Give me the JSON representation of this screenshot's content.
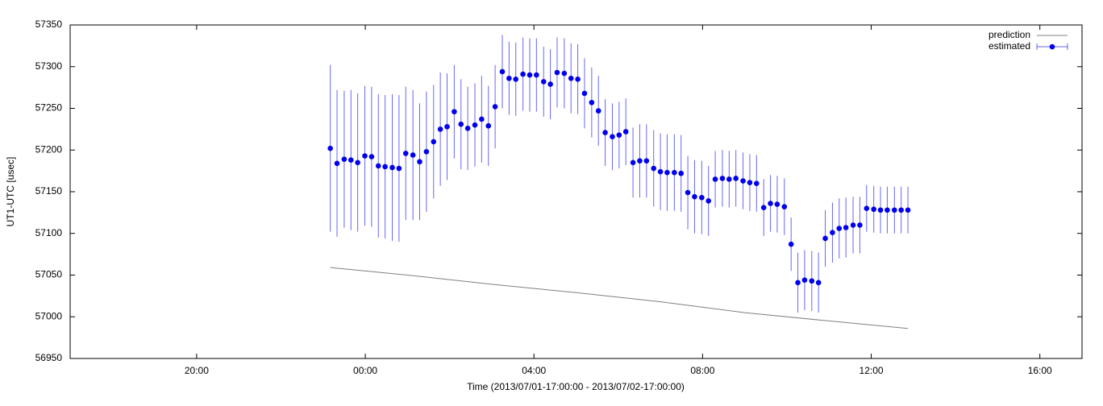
{
  "chart_data": {
    "type": "errorbar",
    "xlabel": "Time (2013/07/01-17:00:00 - 2013/07/02-17:00:00)",
    "ylabel": "UT1-UTC [usec]",
    "xlim": [
      0,
      24
    ],
    "xticks": [
      {
        "value": 3,
        "label": "20:00"
      },
      {
        "value": 7,
        "label": "00:00"
      },
      {
        "value": 11,
        "label": "04:00"
      },
      {
        "value": 15,
        "label": "08:00"
      },
      {
        "value": 19,
        "label": "12:00"
      },
      {
        "value": 23,
        "label": "16:00"
      }
    ],
    "ylim": [
      56950,
      57350
    ],
    "yticks": [
      56950,
      57000,
      57050,
      57100,
      57150,
      57200,
      57250,
      57300,
      57350
    ],
    "grid": false,
    "legend": "upper right",
    "series": [
      {
        "name": "prediction",
        "color": "#808080",
        "style": "line",
        "x": [
          6.17,
          8,
          10,
          12,
          14,
          16,
          18,
          19.87
        ],
        "values": [
          57059,
          57050,
          57039,
          57029,
          57018,
          57005,
          56995,
          56986
        ]
      },
      {
        "name": "estimated",
        "color": "#0000ee",
        "style": "errorbar",
        "x": [
          6.17,
          6.33,
          6.5,
          6.66,
          6.82,
          6.99,
          7.15,
          7.31,
          7.47,
          7.64,
          7.8,
          7.96,
          8.13,
          8.29,
          8.45,
          8.62,
          8.78,
          8.94,
          9.11,
          9.27,
          9.43,
          9.6,
          9.76,
          9.92,
          10.08,
          10.25,
          10.41,
          10.57,
          10.74,
          10.9,
          11.06,
          11.23,
          11.39,
          11.55,
          11.72,
          11.88,
          12.04,
          12.2,
          12.37,
          12.53,
          12.69,
          12.86,
          13.02,
          13.18,
          13.35,
          13.51,
          13.67,
          13.84,
          14.0,
          14.16,
          14.33,
          14.49,
          14.65,
          14.81,
          14.98,
          15.14,
          15.3,
          15.47,
          15.63,
          15.79,
          15.96,
          16.12,
          16.28,
          16.45,
          16.61,
          16.77,
          16.94,
          17.1,
          17.26,
          17.42,
          17.59,
          17.75,
          17.91,
          18.08,
          18.24,
          18.4,
          18.57,
          18.73,
          18.89,
          19.06,
          19.22,
          19.38,
          19.55,
          19.71,
          19.87
        ],
        "values": [
          57202,
          57184,
          57189,
          57188,
          57185,
          57193,
          57192,
          57181,
          57180,
          57179,
          57178,
          57196,
          57194,
          57186,
          57198,
          57210,
          57225,
          57228,
          57246,
          57231,
          57226,
          57230,
          57237,
          57229,
          57252,
          57294,
          57286,
          57285,
          57291,
          57290,
          57290,
          57282,
          57279,
          57293,
          57292,
          57286,
          57285,
          57268,
          57257,
          57247,
          57221,
          57216,
          57218,
          57222,
          57185,
          57187,
          57187,
          57178,
          57174,
          57173,
          57173,
          57172,
          57149,
          57144,
          57143,
          57139,
          57165,
          57166,
          57165,
          57166,
          57163,
          57161,
          57160,
          57131,
          57136,
          57135,
          57132,
          57087,
          57041,
          57044,
          57043,
          57041,
          57094,
          57101,
          57106,
          57107,
          57110,
          57110,
          57130,
          57129,
          57128,
          57128,
          57128,
          57128,
          57128
        ],
        "errors": [
          100,
          88,
          82,
          84,
          83,
          84,
          84,
          86,
          86,
          88,
          88,
          80,
          78,
          70,
          72,
          68,
          68,
          64,
          56,
          54,
          50,
          50,
          52,
          48,
          50,
          44,
          44,
          44,
          44,
          44,
          44,
          42,
          42,
          42,
          42,
          42,
          42,
          42,
          42,
          42,
          40,
          40,
          40,
          40,
          42,
          44,
          44,
          46,
          46,
          46,
          46,
          46,
          44,
          44,
          44,
          42,
          34,
          34,
          34,
          34,
          34,
          34,
          34,
          34,
          34,
          34,
          34,
          32,
          36,
          36,
          36,
          36,
          34,
          36,
          36,
          36,
          34,
          34,
          28,
          28,
          28,
          28,
          28,
          28,
          28
        ]
      }
    ]
  }
}
